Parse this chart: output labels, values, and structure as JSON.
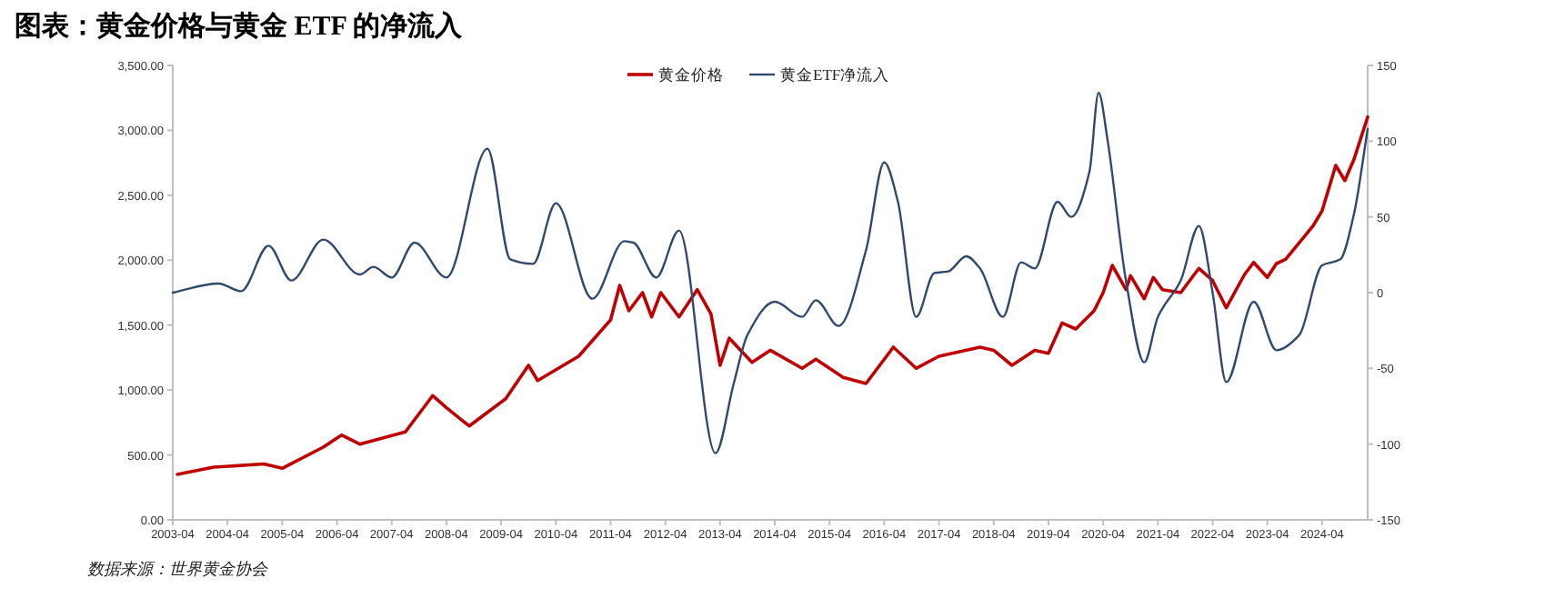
{
  "chart_data": {
    "type": "line",
    "title": "图表：黄金价格与黄金 ETF 的净流入",
    "annotations": [
      "数据来源：世界黄金协会"
    ],
    "xlim": [
      "2003-04",
      "2025-02"
    ],
    "xticks": [
      {
        "value": "2003-04",
        "label": "2003-04"
      },
      {
        "value": "2004-04",
        "label": "2004-04"
      },
      {
        "value": "2005-04",
        "label": "2005-04"
      },
      {
        "value": "2006-04",
        "label": "2006-04"
      },
      {
        "value": "2007-04",
        "label": "2007-04"
      },
      {
        "value": "2008-04",
        "label": "2008-04"
      },
      {
        "value": "2009-04",
        "label": "2009-04"
      },
      {
        "value": "2010-04",
        "label": "2010-04"
      },
      {
        "value": "2011-04",
        "label": "2011-04"
      },
      {
        "value": "2012-04",
        "label": "2012-04"
      },
      {
        "value": "2013-04",
        "label": "2013-04"
      },
      {
        "value": "2014-04",
        "label": "2014-04"
      },
      {
        "value": "2015-04",
        "label": "2015-04"
      },
      {
        "value": "2016-04",
        "label": "2016-04"
      },
      {
        "value": "2017-04",
        "label": "2017-04"
      },
      {
        "value": "2018-04",
        "label": "2018-04"
      },
      {
        "value": "2019-04",
        "label": "2019-04"
      },
      {
        "value": "2020-04",
        "label": "2020-04"
      },
      {
        "value": "2021-04",
        "label": "2021-04"
      },
      {
        "value": "2022-04",
        "label": "2022-04"
      },
      {
        "value": "2023-04",
        "label": "2023-04"
      },
      {
        "value": "2024-04",
        "label": "2024-04"
      }
    ],
    "ylim": [
      0,
      3500
    ],
    "yticks": [
      {
        "value": 0,
        "label": "0.00"
      },
      {
        "value": 500,
        "label": "500.00"
      },
      {
        "value": 1000,
        "label": "1,000.00"
      },
      {
        "value": 1500,
        "label": "1,500.00"
      },
      {
        "value": 2000,
        "label": "2,000.00"
      },
      {
        "value": 2500,
        "label": "2,500.00"
      },
      {
        "value": 3000,
        "label": "3,000.00"
      },
      {
        "value": 3500,
        "label": "3,500.00"
      }
    ],
    "y2lim": [
      -150,
      150
    ],
    "y2ticks": [
      -150,
      -100,
      -50,
      0,
      50,
      100,
      150
    ],
    "grid": false,
    "legend": "top right",
    "marker": "none",
    "series": [
      {
        "name": "黄金价格",
        "color": "#c00000",
        "x": [
          "2003-05",
          "2004-01",
          "2004-12",
          "2005-04",
          "2006-01",
          "2006-05",
          "2006-09",
          "2007-07",
          "2008-01",
          "2008-04",
          "2008-09",
          "2009-05",
          "2009-10",
          "2009-12",
          "2010-09",
          "2011-04",
          "2011-06",
          "2011-08",
          "2011-11",
          "2012-01",
          "2012-03",
          "2012-07",
          "2012-11",
          "2013-02",
          "2013-04",
          "2013-06",
          "2013-11",
          "2014-03",
          "2014-10",
          "2015-01",
          "2015-07",
          "2015-12",
          "2016-06",
          "2016-11",
          "2017-04",
          "2018-01",
          "2018-04",
          "2018-08",
          "2019-01",
          "2019-04",
          "2019-07",
          "2019-10",
          "2020-02",
          "2020-04",
          "2020-06",
          "2020-09",
          "2020-10",
          "2021-01",
          "2021-03",
          "2021-05",
          "2021-09",
          "2022-01",
          "2022-04",
          "2022-07",
          "2022-11",
          "2023-01",
          "2023-04",
          "2023-06",
          "2023-08",
          "2024-02",
          "2024-04",
          "2024-07",
          "2024-09",
          "2024-11",
          "2025-02"
        ],
        "values": [
          350,
          406,
          430,
          397,
          560,
          653,
          583,
          677,
          957,
          863,
          723,
          933,
          1190,
          1073,
          1260,
          1540,
          1806,
          1610,
          1750,
          1563,
          1750,
          1563,
          1773,
          1587,
          1190,
          1400,
          1213,
          1306,
          1167,
          1237,
          1097,
          1050,
          1330,
          1167,
          1260,
          1330,
          1306,
          1190,
          1306,
          1283,
          1517,
          1470,
          1610,
          1750,
          1960,
          1773,
          1880,
          1703,
          1867,
          1773,
          1750,
          1937,
          1843,
          1633,
          1890,
          1983,
          1867,
          1974,
          2007,
          2263,
          2380,
          2730,
          2613,
          2777,
          3103
        ]
      },
      {
        "name": "黄金ETF净流入",
        "color": "#2f4a6e",
        "axis": "y2",
        "line_style": "solid",
        "x": [
          "2003-04",
          "2004-02",
          "2004-07",
          "2005-01",
          "2005-06",
          "2006-01",
          "2006-09",
          "2006-12",
          "2007-04",
          "2007-09",
          "2008-04",
          "2009-01",
          "2009-06",
          "2009-11",
          "2010-04",
          "2010-12",
          "2011-07",
          "2011-09",
          "2012-02",
          "2012-07",
          "2013-03",
          "2013-07",
          "2013-10",
          "2014-04",
          "2014-10",
          "2015-01",
          "2015-06",
          "2015-12",
          "2016-04",
          "2016-07",
          "2016-11",
          "2017-03",
          "2017-06",
          "2017-10",
          "2018-01",
          "2018-06",
          "2018-10",
          "2019-01",
          "2019-06",
          "2019-09",
          "2020-01",
          "2020-03",
          "2020-05",
          "2020-09",
          "2021-01",
          "2021-04",
          "2021-09",
          "2022-01",
          "2022-04",
          "2022-07",
          "2023-01",
          "2023-06",
          "2023-11",
          "2024-04",
          "2024-08",
          "2024-11",
          "2025-02"
        ],
        "values": [
          0,
          6,
          1,
          31,
          8,
          35,
          12,
          17,
          10,
          33,
          10,
          95,
          22,
          19,
          59,
          -4,
          34,
          33,
          10,
          41,
          -106,
          -60,
          -28,
          -6,
          -16,
          -5,
          -22,
          28,
          86,
          60,
          -16,
          13,
          14,
          24,
          16,
          -16,
          20,
          16,
          60,
          50,
          80,
          132,
          100,
          8,
          -46,
          -16,
          8,
          44,
          0,
          -59,
          -6,
          -38,
          -28,
          18,
          22,
          52,
          108
        ]
      }
    ]
  }
}
